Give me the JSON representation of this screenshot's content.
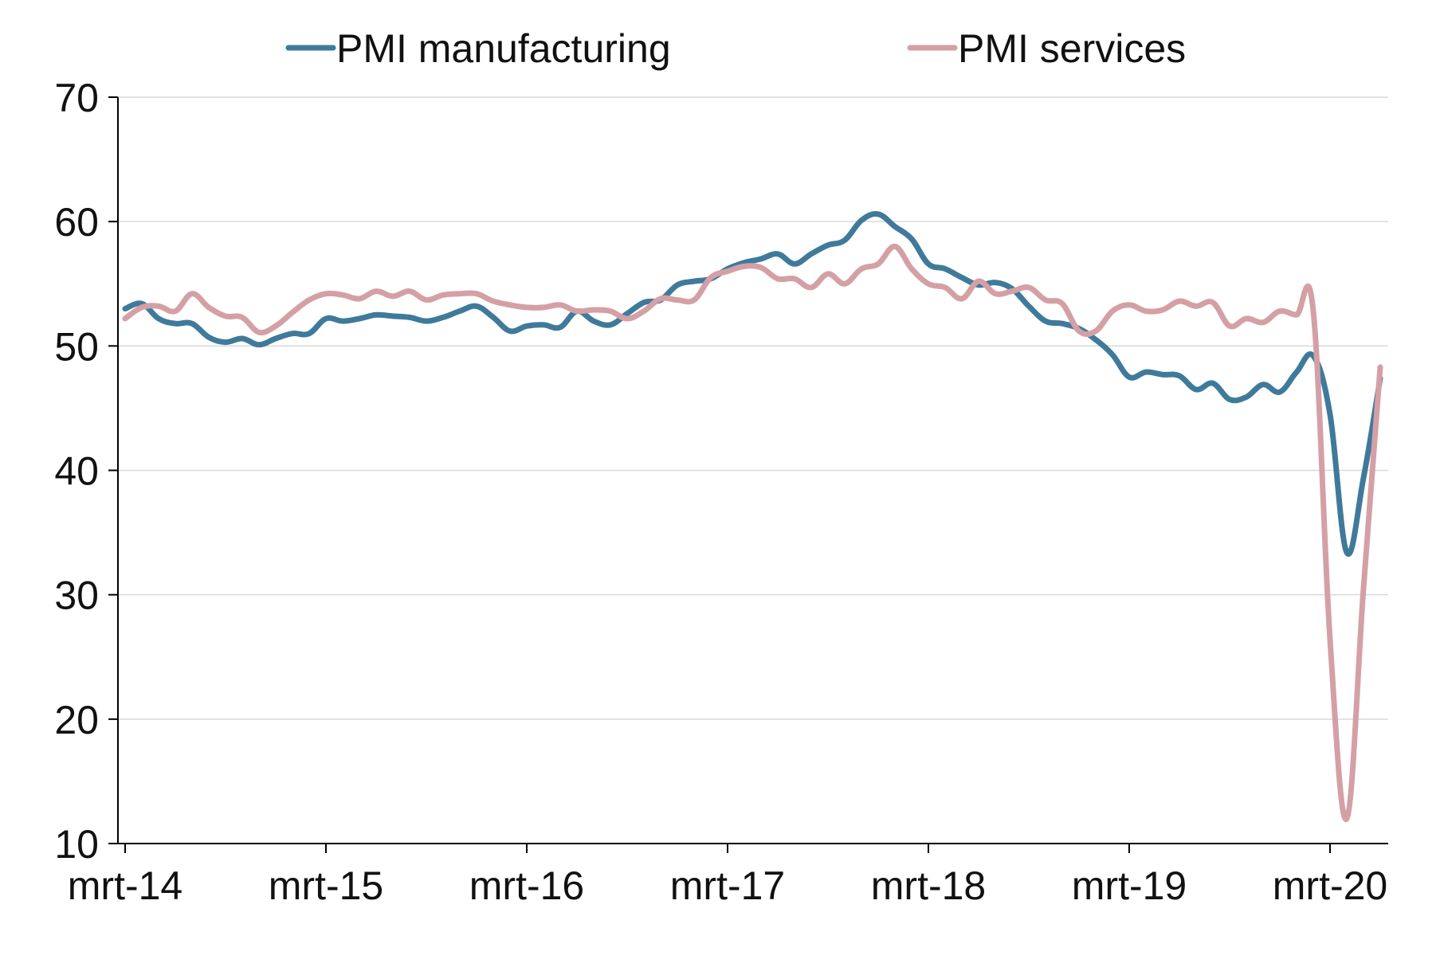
{
  "chart_data": {
    "type": "line",
    "title": "",
    "xlabel": "",
    "ylabel": "",
    "ylim": [
      10,
      70
    ],
    "yticks": [
      10,
      20,
      30,
      40,
      50,
      60,
      70
    ],
    "ytick_labels": [
      "10",
      "20",
      "30",
      "40",
      "50",
      "60",
      "70"
    ],
    "x_start": "2014-03",
    "x_end": "2020-06",
    "xticks": [
      "2014-03",
      "2015-03",
      "2016-03",
      "2017-03",
      "2018-03",
      "2019-03",
      "2020-03"
    ],
    "xtick_labels": [
      "mrt-14",
      "mrt-15",
      "mrt-16",
      "mrt-17",
      "mrt-18",
      "mrt-19",
      "mrt-20"
    ],
    "grid": true,
    "legend_position": "top-center",
    "x": [
      "2014-03",
      "2014-04",
      "2014-05",
      "2014-06",
      "2014-07",
      "2014-08",
      "2014-09",
      "2014-10",
      "2014-11",
      "2014-12",
      "2015-01",
      "2015-02",
      "2015-03",
      "2015-04",
      "2015-05",
      "2015-06",
      "2015-07",
      "2015-08",
      "2015-09",
      "2015-10",
      "2015-11",
      "2015-12",
      "2016-01",
      "2016-02",
      "2016-03",
      "2016-04",
      "2016-05",
      "2016-06",
      "2016-07",
      "2016-08",
      "2016-09",
      "2016-10",
      "2016-11",
      "2016-12",
      "2017-01",
      "2017-02",
      "2017-03",
      "2017-04",
      "2017-05",
      "2017-06",
      "2017-07",
      "2017-08",
      "2017-09",
      "2017-10",
      "2017-11",
      "2017-12",
      "2018-01",
      "2018-02",
      "2018-03",
      "2018-04",
      "2018-05",
      "2018-06",
      "2018-07",
      "2018-08",
      "2018-09",
      "2018-10",
      "2018-11",
      "2018-12",
      "2019-01",
      "2019-02",
      "2019-03",
      "2019-04",
      "2019-05",
      "2019-06",
      "2019-07",
      "2019-08",
      "2019-09",
      "2019-10",
      "2019-11",
      "2019-12",
      "2020-01",
      "2020-02",
      "2020-03",
      "2020-04",
      "2020-05",
      "2020-06"
    ],
    "series": [
      {
        "name": "PMI manufacturing",
        "color": "#3f7a9b",
        "values": [
          53.0,
          53.4,
          52.2,
          51.8,
          51.8,
          50.7,
          50.3,
          50.6,
          50.1,
          50.6,
          51.0,
          51.0,
          52.2,
          52.0,
          52.2,
          52.5,
          52.4,
          52.3,
          52.0,
          52.3,
          52.8,
          53.2,
          52.3,
          51.2,
          51.6,
          51.7,
          51.5,
          52.8,
          52.0,
          51.7,
          52.6,
          53.5,
          53.7,
          54.9,
          55.2,
          55.4,
          56.2,
          56.7,
          57.0,
          57.4,
          56.6,
          57.4,
          58.1,
          58.5,
          60.1,
          60.6,
          59.6,
          58.6,
          56.6,
          56.2,
          55.5,
          54.9,
          55.1,
          54.6,
          53.2,
          52.0,
          51.8,
          51.4,
          50.5,
          49.3,
          47.5,
          47.9,
          47.7,
          47.6,
          46.5,
          47.0,
          45.7,
          45.9,
          46.9,
          46.3,
          47.9,
          49.2,
          44.5,
          33.4,
          39.4,
          47.4
        ]
      },
      {
        "name": "PMI services",
        "color": "#d4a0a5",
        "values": [
          52.2,
          53.1,
          53.2,
          52.8,
          54.2,
          53.1,
          52.4,
          52.3,
          51.1,
          51.6,
          52.7,
          53.7,
          54.2,
          54.1,
          53.8,
          54.4,
          54.0,
          54.4,
          53.7,
          54.1,
          54.2,
          54.2,
          53.6,
          53.3,
          53.1,
          53.1,
          53.3,
          52.8,
          52.9,
          52.8,
          52.2,
          52.8,
          53.8,
          53.7,
          53.7,
          55.5,
          56.0,
          56.4,
          56.3,
          55.4,
          55.4,
          54.7,
          55.8,
          55.0,
          56.2,
          56.6,
          58.0,
          56.2,
          55.0,
          54.7,
          53.8,
          55.2,
          54.2,
          54.4,
          54.7,
          53.7,
          53.4,
          51.2,
          51.2,
          52.8,
          53.3,
          52.8,
          52.9,
          53.6,
          53.2,
          53.5,
          51.6,
          52.2,
          51.9,
          52.8,
          52.5,
          52.8,
          26.4,
          12.0,
          30.5,
          48.3
        ]
      }
    ]
  }
}
